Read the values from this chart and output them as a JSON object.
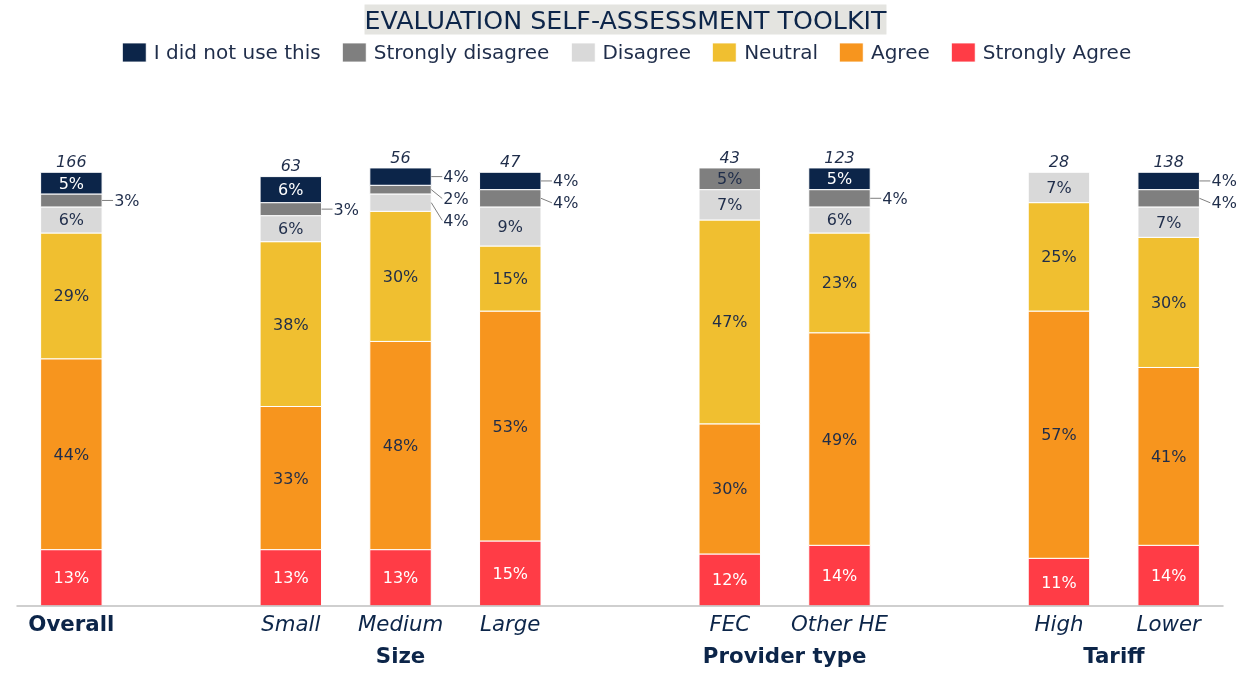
{
  "chart_data": {
    "type": "bar",
    "stacked": true,
    "title": "EVALUATION SELF-ASSESSMENT TOOLKIT",
    "categories": [
      "Overall",
      null,
      "Small",
      "Medium",
      "Large",
      null,
      "FEC",
      "Other HE",
      null,
      "High",
      "Lower"
    ],
    "series": [
      {
        "name": "Strongly Agree",
        "color": "#ff3c46",
        "values": [
          13,
          null,
          13,
          13,
          15,
          null,
          12,
          14,
          null,
          11,
          14
        ],
        "value_labels": [
          "13%",
          null,
          "13%",
          "13%",
          "15%",
          null,
          "12%",
          "14%",
          null,
          "11%",
          "14%"
        ]
      },
      {
        "name": "Agree",
        "color": "#f7951e",
        "values": [
          44,
          null,
          33,
          48,
          53,
          null,
          30,
          49,
          null,
          57,
          41
        ],
        "value_labels": [
          "44%",
          null,
          "33%",
          "48%",
          "53%",
          null,
          "30%",
          "49%",
          null,
          "57%",
          "41%"
        ]
      },
      {
        "name": "Neutral",
        "color": "#f0bf30",
        "values": [
          29,
          null,
          38,
          30,
          15,
          null,
          47,
          23,
          null,
          25,
          30
        ],
        "value_labels": [
          "29%",
          null,
          "38%",
          "30%",
          "15%",
          null,
          "47%",
          "23%",
          null,
          "25%",
          "30%"
        ]
      },
      {
        "name": "Disagree",
        "color": "#d9d9d9",
        "values": [
          6,
          null,
          6,
          4,
          9,
          null,
          7,
          6,
          null,
          7,
          7
        ],
        "value_labels": [
          "6%",
          null,
          "6%",
          "4%",
          "9%",
          null,
          "7%",
          "6%",
          null,
          "7%",
          "7%"
        ]
      },
      {
        "name": "Strongly disagree",
        "color": "#7f7f7f",
        "values": [
          3,
          null,
          3,
          2,
          4,
          null,
          5,
          4,
          null,
          null,
          4
        ],
        "value_labels": [
          "3%",
          null,
          "3%",
          "2%",
          "4%",
          null,
          "5%",
          "4%",
          null,
          null,
          "4%"
        ]
      },
      {
        "name": "I did not use this",
        "color": "#0c2549",
        "values": [
          5,
          null,
          6,
          4,
          4,
          null,
          null,
          5,
          null,
          null,
          4
        ],
        "value_labels": [
          "5%",
          null,
          "6%",
          "4%",
          "4%",
          null,
          null,
          "5%",
          null,
          null,
          "4%"
        ]
      }
    ],
    "annotations": [
      {
        "text": "166",
        "x": "Overall",
        "y": 100
      },
      {
        "text": "63",
        "x": "Small",
        "y": 99
      },
      {
        "text": "56",
        "x": "Medium",
        "y": 101
      },
      {
        "text": "47",
        "x": "Large",
        "y": 100
      },
      {
        "text": "43",
        "x": "FEC",
        "y": 101
      },
      {
        "text": "123",
        "x": "Other HE",
        "y": 101
      },
      {
        "text": "28",
        "x": "High",
        "y": 100
      },
      {
        "text": "138",
        "x": "Lower",
        "y": 100
      },
      "Size",
      "Provider type",
      "Tariff"
    ],
    "legend": "top",
    "grid": false
  }
}
